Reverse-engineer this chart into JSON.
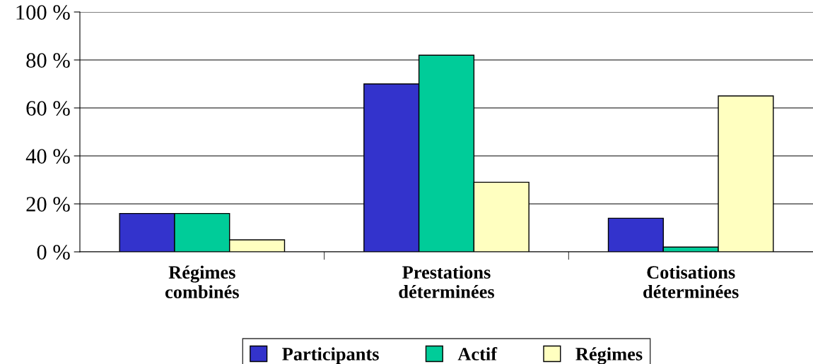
{
  "chart_data": {
    "type": "bar",
    "categories": [
      "Régimes\ncombinés",
      "Prestations\ndéterminées",
      "Cotisations\ndéterminées"
    ],
    "series": [
      {
        "name": "Participants",
        "color": "#3333cc",
        "values": [
          16,
          70,
          14
        ]
      },
      {
        "name": "Actif",
        "color": "#00cc99",
        "values": [
          16,
          82,
          2
        ]
      },
      {
        "name": "Régimes",
        "color": "#ffffc0",
        "values": [
          5,
          29,
          65
        ]
      }
    ],
    "ylim": [
      0,
      100
    ],
    "yticks": [
      {
        "value": 0,
        "label": "0 %"
      },
      {
        "value": 20,
        "label": "20 %"
      },
      {
        "value": 40,
        "label": "40 %"
      },
      {
        "value": 60,
        "label": "60 %"
      },
      {
        "value": 80,
        "label": "80 %"
      },
      {
        "value": 100,
        "label": "100 %"
      }
    ],
    "grid": "y",
    "legend": "bottom"
  }
}
